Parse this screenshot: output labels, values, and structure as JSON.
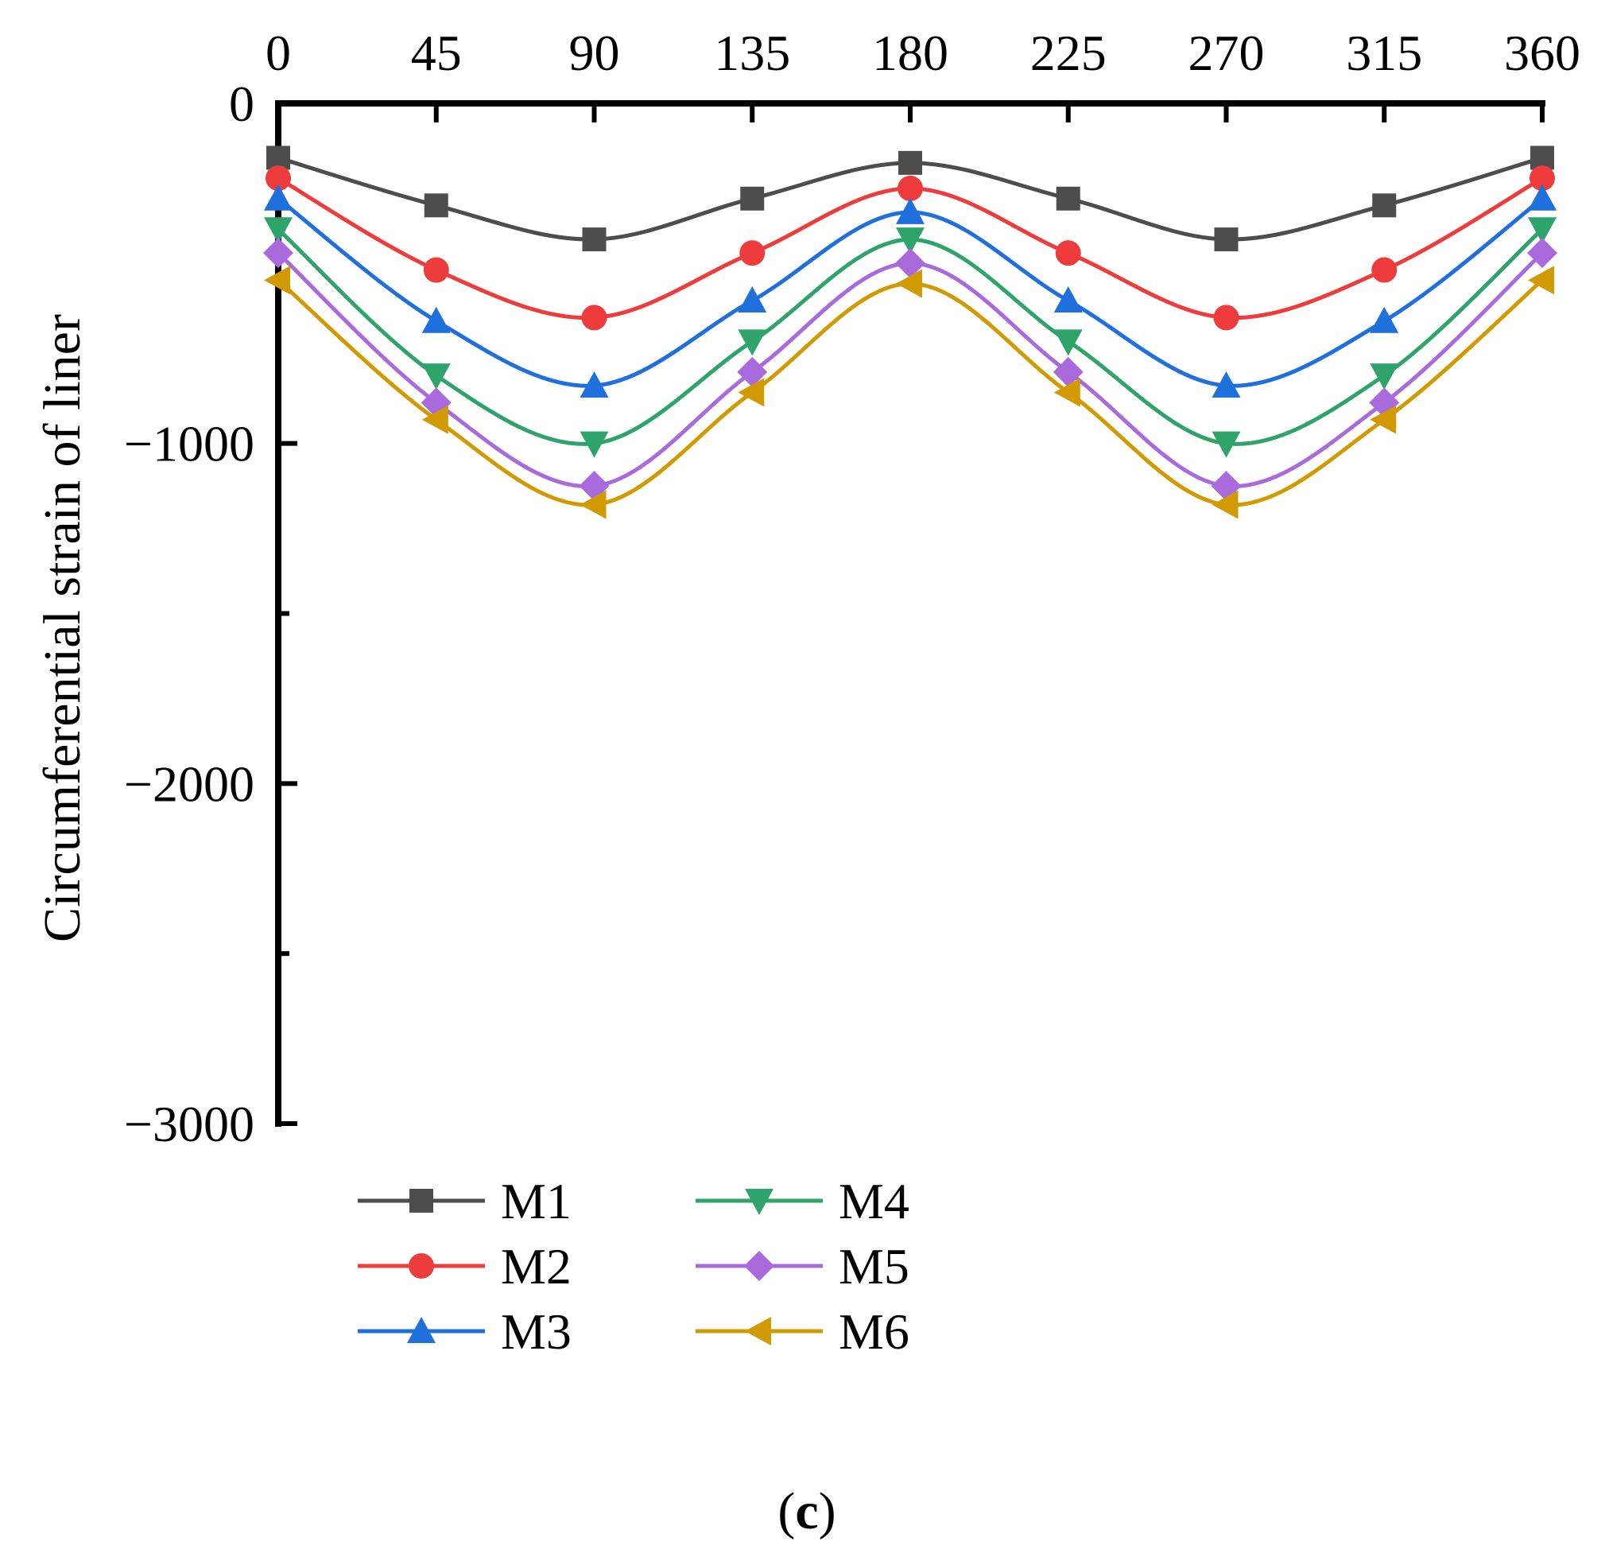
{
  "chart_data": {
    "type": "line",
    "title": "",
    "xlabel": "",
    "ylabel": "Circumferential strain of liner",
    "xlim": [
      0,
      360
    ],
    "ylim": [
      -3000,
      0
    ],
    "x_axis_position": "top",
    "y_axis_inverted": false,
    "x_ticks": [
      0,
      45,
      90,
      135,
      180,
      225,
      270,
      315,
      360
    ],
    "x_tick_labels": [
      "0",
      "45",
      "90",
      "135",
      "180",
      "225",
      "270",
      "315",
      "360"
    ],
    "y_ticks": [
      0,
      -1000,
      -2000,
      -3000
    ],
    "y_tick_labels": [
      "0",
      "−1000",
      "−2000",
      "−3000"
    ],
    "y_minor_ticks": [
      -500,
      -1500,
      -2500
    ],
    "grid": false,
    "legend_position": "bottom-left",
    "legend_columns": 2,
    "panel_label": {
      "open": "(",
      "letter": "c",
      "close": ")"
    },
    "x": [
      0,
      45,
      90,
      135,
      180,
      225,
      270,
      315,
      360
    ],
    "series": [
      {
        "name": "M1",
        "color": "#4d4d4d",
        "marker": "square",
        "values": [
          -160,
          -300,
          -400,
          -280,
          -175,
          -280,
          -400,
          -300,
          -160
        ]
      },
      {
        "name": "M2",
        "color": "#ee3b3b",
        "marker": "circle",
        "values": [
          -220,
          -490,
          -630,
          -440,
          -250,
          -440,
          -630,
          -490,
          -220
        ]
      },
      {
        "name": "M3",
        "color": "#1f6fdc",
        "marker": "triangle-up",
        "values": [
          -280,
          -640,
          -830,
          -580,
          -320,
          -580,
          -830,
          -640,
          -280
        ]
      },
      {
        "name": "M4",
        "color": "#2ea36a",
        "marker": "triangle-down",
        "values": [
          -370,
          -800,
          -1000,
          -700,
          -400,
          -700,
          -1000,
          -800,
          -370
        ]
      },
      {
        "name": "M5",
        "color": "#a96bdc",
        "marker": "diamond",
        "values": [
          -440,
          -880,
          -1125,
          -790,
          -470,
          -790,
          -1125,
          -880,
          -440
        ]
      },
      {
        "name": "M6",
        "color": "#d19a00",
        "marker": "triangle-left",
        "values": [
          -520,
          -930,
          -1180,
          -850,
          -530,
          -850,
          -1180,
          -930,
          -520
        ]
      }
    ]
  }
}
